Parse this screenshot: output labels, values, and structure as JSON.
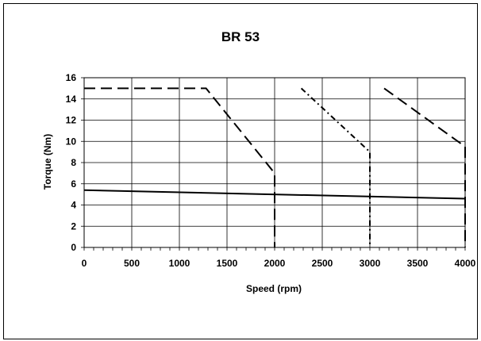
{
  "chart_data": {
    "type": "line",
    "title": "BR 53",
    "xlabel": "Speed (rpm)",
    "ylabel": "Torque (Nm)",
    "xlim": [
      0,
      4000
    ],
    "ylim": [
      0,
      16
    ],
    "xticks": [
      0,
      500,
      1000,
      1500,
      2000,
      2500,
      3000,
      3500,
      4000
    ],
    "yticks": [
      0,
      2,
      4,
      6,
      8,
      10,
      12,
      14,
      16
    ],
    "grid": true,
    "legend": "none",
    "series": [
      {
        "style": "solid",
        "x": [
          0,
          4000
        ],
        "y": [
          5.4,
          4.6
        ]
      },
      {
        "style": "long-dash",
        "x": [
          0,
          1280,
          2000,
          2000,
          2000
        ],
        "y": [
          15,
          15,
          7.0,
          6.4,
          0
        ]
      },
      {
        "style": "dash-dot",
        "x": [
          2280,
          3000,
          3000,
          3000
        ],
        "y": [
          15,
          9.0,
          8.6,
          0
        ]
      },
      {
        "style": "long-dash",
        "x": [
          3150,
          4000,
          4000,
          4000
        ],
        "y": [
          15,
          9.5,
          8.6,
          0
        ]
      }
    ]
  }
}
